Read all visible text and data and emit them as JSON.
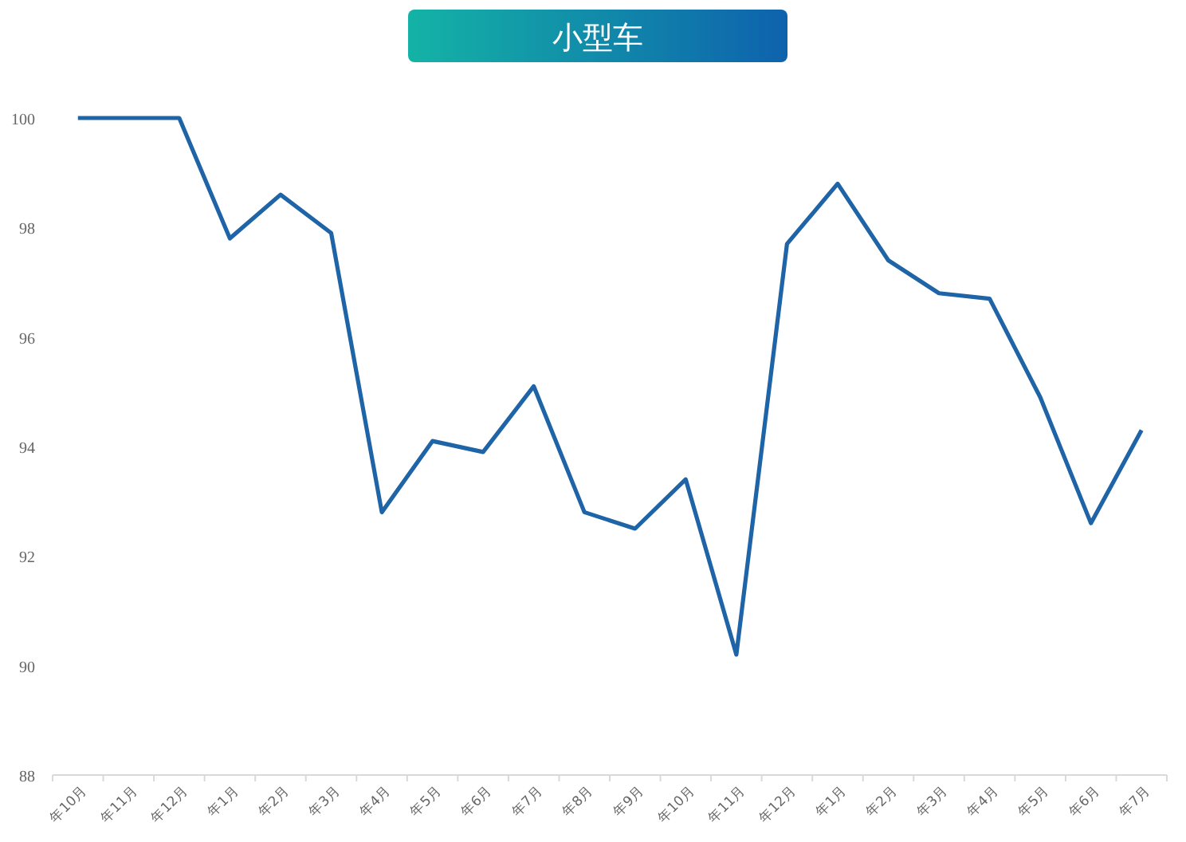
{
  "chart_data": {
    "type": "line",
    "title": "小型车",
    "categories": [
      "年10月",
      "年11月",
      "年12月",
      "年1月",
      "年2月",
      "年3月",
      "年4月",
      "年5月",
      "年6月",
      "年7月",
      "年8月",
      "年9月",
      "年10月",
      "年11月",
      "年12月",
      "年1月",
      "年2月",
      "年3月",
      "年4月",
      "年5月",
      "年6月",
      "年7月"
    ],
    "series": [
      {
        "color": "#1f64a6",
        "values": [
          100,
          100,
          100,
          97.8,
          98.6,
          97.9,
          92.8,
          94.1,
          93.9,
          95.1,
          92.8,
          92.5,
          93.4,
          90.2,
          97.7,
          98.8,
          97.4,
          96.8,
          96.7,
          94.9,
          92.6,
          94.3
        ]
      }
    ],
    "ylim": [
      88,
      100
    ],
    "yticks": [
      88,
      90,
      92,
      94,
      96,
      98,
      100
    ],
    "grid": false,
    "marker": "none",
    "line_style": "solid"
  }
}
